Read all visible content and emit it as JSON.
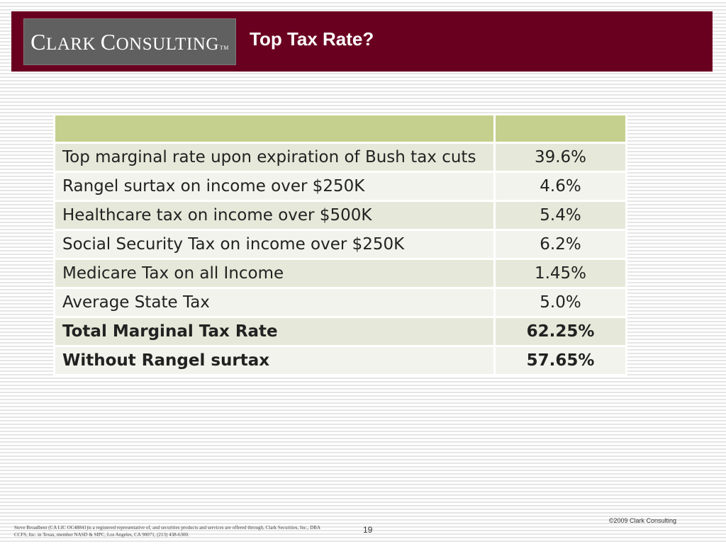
{
  "header": {
    "logo_lead": "C",
    "logo_rest1": "LARK ",
    "logo_lead2": "C",
    "logo_rest2": "ONSULTING",
    "logo_tm": "TM",
    "title": "Top Tax Rate?"
  },
  "table": {
    "headers": [
      "",
      ""
    ],
    "rows": [
      {
        "label": "Top marginal rate upon expiration of Bush tax cuts",
        "value": "39.6%"
      },
      {
        "label": "Rangel surtax on income over $250K",
        "value": "4.6%"
      },
      {
        "label": "Healthcare tax on income over $500K",
        "value": "5.4%"
      },
      {
        "label": "Social Security Tax on income over $250K",
        "value": "6.2%"
      },
      {
        "label": "Medicare Tax on all Income",
        "value": "1.45%"
      },
      {
        "label": "Average State Tax",
        "value": "5.0%"
      },
      {
        "label": "Total Marginal Tax Rate",
        "value": "62.25%"
      },
      {
        "label": "Without Rangel surtax",
        "value": "57.65%"
      }
    ]
  },
  "footer": {
    "copyright": "©2009 Clark Consulting",
    "disclaimer": "Steve Broadbent (CA LIC OC48841)is a registered representative of, and securities products and services are offered through, Clark Securities, Inc., DBA CCFS, Inc. in Texas, member NASD & SIPC, Los Angeles, CA 90071, (213) 438-6300.",
    "page_number": "19"
  },
  "colors": {
    "header_bg": "#6a0020",
    "logo_bg": "#606060",
    "table_header": "#c5d08e",
    "row_odd": "#e6e8d9",
    "row_even": "#f2f3ec"
  }
}
